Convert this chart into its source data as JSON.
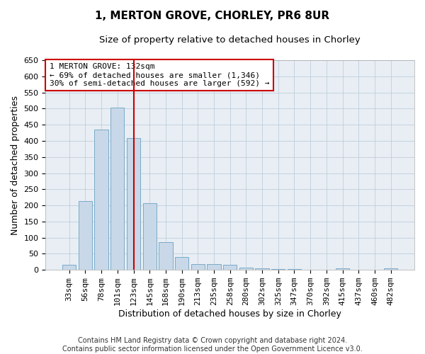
{
  "title1": "1, MERTON GROVE, CHORLEY, PR6 8UR",
  "title2": "Size of property relative to detached houses in Chorley",
  "xlabel": "Distribution of detached houses by size in Chorley",
  "ylabel": "Number of detached properties",
  "categories": [
    "33sqm",
    "56sqm",
    "78sqm",
    "101sqm",
    "123sqm",
    "145sqm",
    "168sqm",
    "190sqm",
    "213sqm",
    "235sqm",
    "258sqm",
    "280sqm",
    "302sqm",
    "325sqm",
    "347sqm",
    "370sqm",
    "392sqm",
    "415sqm",
    "437sqm",
    "460sqm",
    "482sqm"
  ],
  "values": [
    15,
    213,
    435,
    503,
    408,
    207,
    85,
    40,
    18,
    18,
    15,
    8,
    5,
    3,
    2,
    1,
    1,
    5,
    1,
    1,
    5
  ],
  "bar_color": "#c8d8e8",
  "bar_edge_color": "#7aaac8",
  "highlight_line_color": "#cc0000",
  "annotation_text": "1 MERTON GROVE: 132sqm\n← 69% of detached houses are smaller (1,346)\n30% of semi-detached houses are larger (592) →",
  "annotation_box_color": "#ffffff",
  "annotation_box_edge": "#cc0000",
  "ylim": [
    0,
    650
  ],
  "yticks": [
    0,
    50,
    100,
    150,
    200,
    250,
    300,
    350,
    400,
    450,
    500,
    550,
    600,
    650
  ],
  "footer": "Contains HM Land Registry data © Crown copyright and database right 2024.\nContains public sector information licensed under the Open Government Licence v3.0.",
  "plot_bg_color": "#e8eef4",
  "title1_fontsize": 11,
  "title2_fontsize": 9.5,
  "xlabel_fontsize": 9,
  "ylabel_fontsize": 9,
  "tick_fontsize": 8,
  "footer_fontsize": 7
}
